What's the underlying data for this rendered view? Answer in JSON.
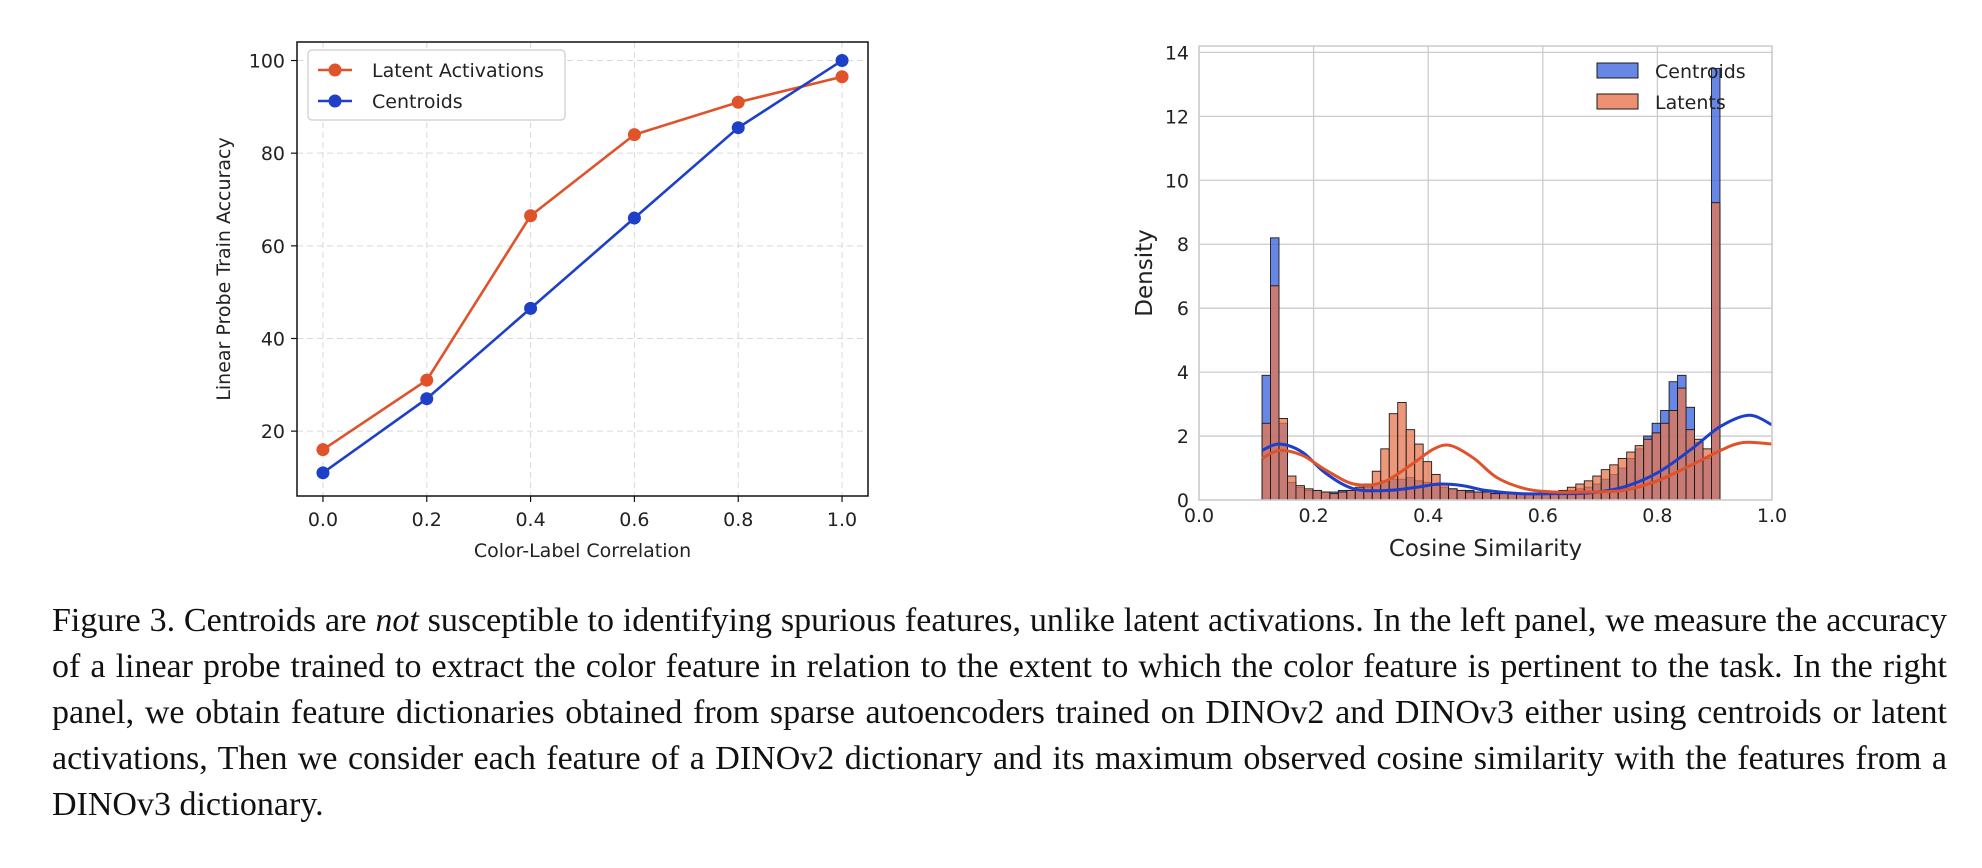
{
  "chart_data": [
    {
      "type": "line",
      "title": "",
      "xlabel": "Color-Label Correlation",
      "ylabel": "Linear Probe Train Accuracy",
      "xlim": [
        -0.05,
        1.05
      ],
      "ylim": [
        6,
        104
      ],
      "xticks": [
        "0.0",
        "0.2",
        "0.4",
        "0.6",
        "0.8",
        "1.0"
      ],
      "yticks": [
        "20",
        "40",
        "60",
        "80",
        "100"
      ],
      "grid": true,
      "legend_position": "top-left",
      "x": [
        0.0,
        0.2,
        0.4,
        0.6,
        0.8,
        1.0
      ],
      "series": [
        {
          "name": "Latent Activations",
          "color": "#e0522a",
          "values": [
            16,
            31,
            66.5,
            84,
            91,
            96.5
          ]
        },
        {
          "name": "Centroids",
          "color": "#1e40c8",
          "values": [
            11,
            27,
            46.5,
            66,
            85.5,
            100
          ]
        }
      ]
    },
    {
      "type": "bar",
      "subtype": "histogram-with-kde",
      "title": "",
      "xlabel": "Cosine Similarity",
      "ylabel": "Density",
      "xlim": [
        0.0,
        1.0
      ],
      "ylim": [
        0,
        14.2
      ],
      "xticks": [
        "0.0",
        "0.2",
        "0.4",
        "0.6",
        "0.8",
        "1.0"
      ],
      "yticks": [
        "0",
        "2",
        "4",
        "6",
        "8",
        "10",
        "12",
        "14"
      ],
      "grid": true,
      "legend_position": "top-right",
      "bin_start": 0.11,
      "bin_width": 0.0148,
      "series": [
        {
          "name": "Centroids",
          "color": "#4169e1",
          "kde_color": "#1e40c8",
          "values": [
            3.9,
            8.2,
            2.4,
            0.55,
            0.4,
            0.3,
            0.3,
            0.25,
            0.25,
            0.3,
            0.3,
            0.35,
            0.4,
            0.5,
            0.6,
            0.65,
            0.65,
            0.7,
            0.6,
            0.55,
            0.45,
            0.4,
            0.35,
            0.3,
            0.3,
            0.25,
            0.25,
            0.2,
            0.2,
            0.2,
            0.2,
            0.2,
            0.2,
            0.2,
            0.25,
            0.25,
            0.3,
            0.35,
            0.4,
            0.5,
            0.65,
            0.8,
            1.0,
            1.3,
            1.6,
            2.0,
            2.4,
            2.8,
            3.7,
            3.9,
            2.9,
            1.8,
            1.3,
            13.5
          ],
          "kde": [
            [
              0.11,
              1.55
            ],
            [
              0.14,
              1.75
            ],
            [
              0.18,
              1.5
            ],
            [
              0.22,
              0.85
            ],
            [
              0.27,
              0.35
            ],
            [
              0.33,
              0.3
            ],
            [
              0.38,
              0.4
            ],
            [
              0.42,
              0.5
            ],
            [
              0.46,
              0.45
            ],
            [
              0.5,
              0.3
            ],
            [
              0.56,
              0.2
            ],
            [
              0.62,
              0.2
            ],
            [
              0.68,
              0.22
            ],
            [
              0.74,
              0.4
            ],
            [
              0.8,
              0.85
            ],
            [
              0.86,
              1.6
            ],
            [
              0.91,
              2.3
            ],
            [
              0.96,
              2.65
            ],
            [
              1.0,
              2.35
            ]
          ]
        },
        {
          "name": "Latents",
          "color": "#e8754f",
          "kde_color": "#e0522a",
          "values": [
            2.4,
            6.7,
            2.55,
            0.75,
            0.45,
            0.35,
            0.3,
            0.25,
            0.2,
            0.25,
            0.3,
            0.4,
            0.5,
            0.9,
            1.6,
            2.7,
            3.05,
            2.2,
            1.75,
            1.2,
            0.8,
            0.5,
            0.35,
            0.3,
            0.25,
            0.25,
            0.25,
            0.2,
            0.2,
            0.2,
            0.2,
            0.2,
            0.2,
            0.25,
            0.25,
            0.3,
            0.4,
            0.5,
            0.6,
            0.75,
            0.95,
            1.1,
            1.3,
            1.5,
            1.7,
            1.9,
            2.1,
            2.4,
            2.8,
            3.5,
            2.2,
            1.9,
            1.6,
            9.3
          ],
          "kde": [
            [
              0.11,
              1.3
            ],
            [
              0.14,
              1.55
            ],
            [
              0.18,
              1.4
            ],
            [
              0.22,
              0.95
            ],
            [
              0.27,
              0.5
            ],
            [
              0.32,
              0.55
            ],
            [
              0.37,
              1.1
            ],
            [
              0.41,
              1.6
            ],
            [
              0.44,
              1.7
            ],
            [
              0.48,
              1.3
            ],
            [
              0.52,
              0.7
            ],
            [
              0.57,
              0.35
            ],
            [
              0.62,
              0.25
            ],
            [
              0.68,
              0.25
            ],
            [
              0.74,
              0.3
            ],
            [
              0.8,
              0.6
            ],
            [
              0.86,
              1.1
            ],
            [
              0.91,
              1.55
            ],
            [
              0.95,
              1.8
            ],
            [
              1.0,
              1.75
            ]
          ]
        }
      ]
    }
  ],
  "caption": {
    "part1": "Figure 3. Centroids are ",
    "emphasis": "not",
    "part2": " susceptible to identifying spurious features, unlike latent activations. In the left panel, we measure the accuracy of a linear probe trained to extract the color feature in relation to the extent to which the color feature is pertinent to the task. In the right panel, we obtain feature dictionaries obtained from sparse autoencoders trained on DINOv2 and DINOv3 either using centroids or latent activations, Then we consider each feature of a DINOv2 dictionary and its maximum observed cosine similarity with the features from a DINOv3 dictionary."
  }
}
